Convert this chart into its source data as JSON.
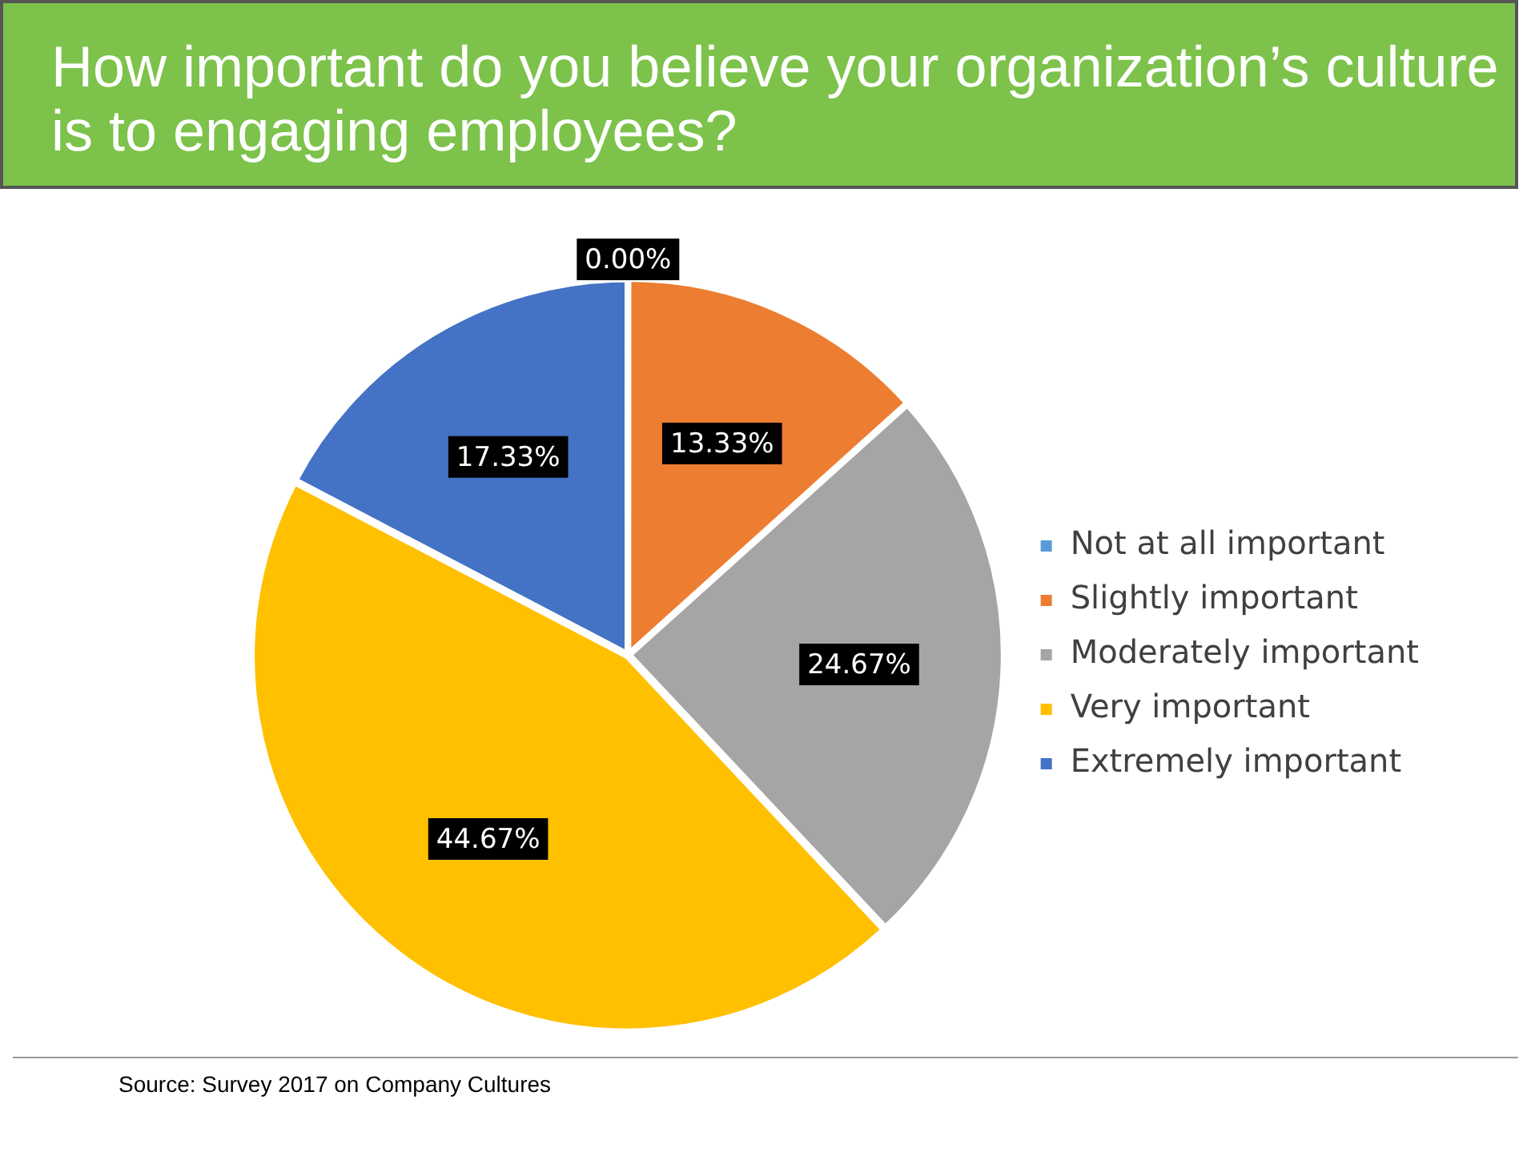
{
  "chart_data": {
    "type": "pie",
    "title": "How important do you believe your organization’s culture is to engaging employees?",
    "categories": [
      "Not at all important",
      "Slightly important",
      "Moderately important",
      "Very important",
      "Extremely important"
    ],
    "values": [
      0,
      13.33,
      24.67,
      44.67,
      17.33
    ],
    "colors": [
      "#5b9bd5",
      "#ed7d31",
      "#a5a5a5",
      "#ffc000",
      "#4472c4"
    ],
    "value_labels": [
      "0.00%",
      "13.33%",
      "24.67%",
      "44.67%",
      "17.33%"
    ],
    "legend": "right",
    "annotations": [
      "Source:  Survey 2017  on Company Cultures"
    ]
  }
}
